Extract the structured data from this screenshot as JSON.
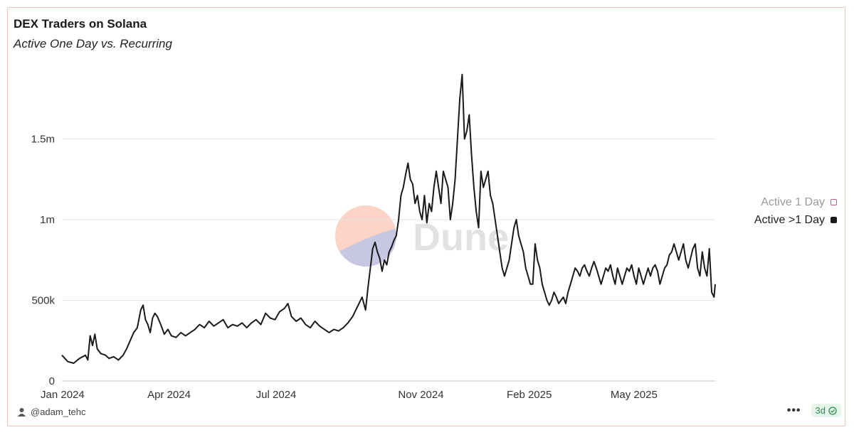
{
  "header": {
    "title": "DEX Traders on Solana",
    "subtitle": "Active One Day vs. Recurring"
  },
  "watermark": "Dune",
  "legend": {
    "items": [
      {
        "label": "Active 1 Day",
        "color": "#b06090",
        "active": false
      },
      {
        "label": "Active >1 Day",
        "color": "#1a1a1a",
        "active": true
      }
    ]
  },
  "footer": {
    "author": "@adam_tehc",
    "more_label": "•••",
    "refresh_badge": "3d"
  },
  "chart_data": {
    "type": "line",
    "title": "DEX Traders on Solana",
    "subtitle": "Active One Day vs. Recurring",
    "xlabel": "",
    "ylabel": "",
    "ylim": [
      0,
      2000000
    ],
    "y_ticks": [
      {
        "value": 0,
        "label": "0"
      },
      {
        "value": 500000,
        "label": "500k"
      },
      {
        "value": 1000000,
        "label": "1m"
      },
      {
        "value": 1500000,
        "label": "1.5m"
      }
    ],
    "x_range": [
      0,
      555
    ],
    "x_ticks": [
      {
        "value": 0,
        "label": "Jan 2024"
      },
      {
        "value": 91,
        "label": "Apr 2024"
      },
      {
        "value": 182,
        "label": "Jul 2024"
      },
      {
        "value": 305,
        "label": "Nov 2024"
      },
      {
        "value": 397,
        "label": "Feb 2025"
      },
      {
        "value": 486,
        "label": "May 2025"
      }
    ],
    "grid": true,
    "legend_position": "right",
    "series": [
      {
        "name": "Active >1 Day",
        "color": "#1a1a1a",
        "points": [
          [
            0,
            160000
          ],
          [
            5,
            120000
          ],
          [
            10,
            110000
          ],
          [
            15,
            140000
          ],
          [
            20,
            160000
          ],
          [
            22,
            130000
          ],
          [
            24,
            280000
          ],
          [
            26,
            220000
          ],
          [
            28,
            290000
          ],
          [
            30,
            200000
          ],
          [
            33,
            170000
          ],
          [
            37,
            160000
          ],
          [
            40,
            140000
          ],
          [
            44,
            150000
          ],
          [
            48,
            130000
          ],
          [
            52,
            160000
          ],
          [
            55,
            200000
          ],
          [
            58,
            250000
          ],
          [
            61,
            300000
          ],
          [
            64,
            330000
          ],
          [
            67,
            440000
          ],
          [
            69,
            470000
          ],
          [
            71,
            380000
          ],
          [
            73,
            350000
          ],
          [
            75,
            300000
          ],
          [
            77,
            390000
          ],
          [
            79,
            420000
          ],
          [
            81,
            400000
          ],
          [
            84,
            350000
          ],
          [
            87,
            290000
          ],
          [
            90,
            320000
          ],
          [
            93,
            280000
          ],
          [
            97,
            270000
          ],
          [
            101,
            300000
          ],
          [
            105,
            280000
          ],
          [
            109,
            300000
          ],
          [
            113,
            320000
          ],
          [
            117,
            350000
          ],
          [
            121,
            330000
          ],
          [
            125,
            370000
          ],
          [
            129,
            340000
          ],
          [
            133,
            360000
          ],
          [
            137,
            380000
          ],
          [
            141,
            330000
          ],
          [
            145,
            350000
          ],
          [
            149,
            340000
          ],
          [
            153,
            360000
          ],
          [
            157,
            330000
          ],
          [
            161,
            360000
          ],
          [
            165,
            380000
          ],
          [
            169,
            350000
          ],
          [
            173,
            420000
          ],
          [
            177,
            390000
          ],
          [
            181,
            380000
          ],
          [
            185,
            430000
          ],
          [
            189,
            450000
          ],
          [
            192,
            480000
          ],
          [
            195,
            400000
          ],
          [
            199,
            370000
          ],
          [
            203,
            390000
          ],
          [
            207,
            350000
          ],
          [
            211,
            330000
          ],
          [
            215,
            370000
          ],
          [
            219,
            340000
          ],
          [
            223,
            320000
          ],
          [
            227,
            300000
          ],
          [
            231,
            320000
          ],
          [
            235,
            310000
          ],
          [
            239,
            330000
          ],
          [
            243,
            360000
          ],
          [
            247,
            400000
          ],
          [
            251,
            460000
          ],
          [
            255,
            520000
          ],
          [
            258,
            440000
          ],
          [
            260,
            580000
          ],
          [
            262,
            700000
          ],
          [
            264,
            820000
          ],
          [
            266,
            860000
          ],
          [
            268,
            800000
          ],
          [
            270,
            760000
          ],
          [
            272,
            680000
          ],
          [
            274,
            750000
          ],
          [
            276,
            720000
          ],
          [
            278,
            800000
          ],
          [
            280,
            830000
          ],
          [
            282,
            870000
          ],
          [
            284,
            900000
          ],
          [
            286,
            1000000
          ],
          [
            288,
            1150000
          ],
          [
            290,
            1200000
          ],
          [
            292,
            1280000
          ],
          [
            294,
            1350000
          ],
          [
            296,
            1250000
          ],
          [
            298,
            1220000
          ],
          [
            300,
            1100000
          ],
          [
            302,
            1150000
          ],
          [
            304,
            1050000
          ],
          [
            306,
            1000000
          ],
          [
            308,
            1150000
          ],
          [
            310,
            980000
          ],
          [
            312,
            1100000
          ],
          [
            314,
            1050000
          ],
          [
            316,
            1200000
          ],
          [
            318,
            1300000
          ],
          [
            320,
            1200000
          ],
          [
            322,
            1100000
          ],
          [
            324,
            1300000
          ],
          [
            326,
            1250000
          ],
          [
            328,
            1200000
          ],
          [
            330,
            1000000
          ],
          [
            332,
            1100000
          ],
          [
            334,
            1250000
          ],
          [
            336,
            1500000
          ],
          [
            338,
            1750000
          ],
          [
            340,
            1900000
          ],
          [
            342,
            1500000
          ],
          [
            344,
            1550000
          ],
          [
            346,
            1650000
          ],
          [
            348,
            1400000
          ],
          [
            350,
            1200000
          ],
          [
            352,
            1050000
          ],
          [
            354,
            950000
          ],
          [
            356,
            1300000
          ],
          [
            358,
            1200000
          ],
          [
            360,
            1250000
          ],
          [
            362,
            1300000
          ],
          [
            364,
            1150000
          ],
          [
            366,
            1100000
          ],
          [
            368,
            1000000
          ],
          [
            370,
            900000
          ],
          [
            372,
            800000
          ],
          [
            374,
            700000
          ],
          [
            376,
            650000
          ],
          [
            378,
            700000
          ],
          [
            380,
            750000
          ],
          [
            382,
            850000
          ],
          [
            384,
            950000
          ],
          [
            386,
            1000000
          ],
          [
            388,
            900000
          ],
          [
            390,
            850000
          ],
          [
            392,
            800000
          ],
          [
            394,
            700000
          ],
          [
            396,
            650000
          ],
          [
            398,
            600000
          ],
          [
            400,
            600000
          ],
          [
            402,
            850000
          ],
          [
            404,
            750000
          ],
          [
            406,
            700000
          ],
          [
            408,
            600000
          ],
          [
            410,
            550000
          ],
          [
            412,
            500000
          ],
          [
            414,
            470000
          ],
          [
            416,
            500000
          ],
          [
            418,
            550000
          ],
          [
            420,
            520000
          ],
          [
            422,
            480000
          ],
          [
            424,
            500000
          ],
          [
            426,
            520000
          ],
          [
            428,
            480000
          ],
          [
            430,
            550000
          ],
          [
            432,
            600000
          ],
          [
            434,
            650000
          ],
          [
            436,
            700000
          ],
          [
            438,
            680000
          ],
          [
            440,
            650000
          ],
          [
            442,
            700000
          ],
          [
            444,
            720000
          ],
          [
            446,
            680000
          ],
          [
            448,
            650000
          ],
          [
            450,
            700000
          ],
          [
            452,
            740000
          ],
          [
            454,
            700000
          ],
          [
            456,
            650000
          ],
          [
            458,
            600000
          ],
          [
            460,
            650000
          ],
          [
            462,
            700000
          ],
          [
            464,
            680000
          ],
          [
            466,
            720000
          ],
          [
            468,
            650000
          ],
          [
            470,
            600000
          ],
          [
            472,
            700000
          ],
          [
            474,
            650000
          ],
          [
            476,
            600000
          ],
          [
            478,
            650000
          ],
          [
            480,
            700000
          ],
          [
            482,
            680000
          ],
          [
            484,
            720000
          ],
          [
            486,
            650000
          ],
          [
            488,
            600000
          ],
          [
            490,
            700000
          ],
          [
            492,
            650000
          ],
          [
            494,
            600000
          ],
          [
            496,
            650000
          ],
          [
            498,
            700000
          ],
          [
            500,
            650000
          ],
          [
            502,
            700000
          ],
          [
            504,
            720000
          ],
          [
            506,
            680000
          ],
          [
            508,
            600000
          ],
          [
            510,
            650000
          ],
          [
            512,
            700000
          ],
          [
            514,
            720000
          ],
          [
            516,
            780000
          ],
          [
            518,
            800000
          ],
          [
            520,
            850000
          ],
          [
            522,
            800000
          ],
          [
            524,
            750000
          ],
          [
            526,
            800000
          ],
          [
            528,
            850000
          ],
          [
            530,
            750000
          ],
          [
            532,
            700000
          ],
          [
            534,
            760000
          ],
          [
            536,
            820000
          ],
          [
            538,
            850000
          ],
          [
            540,
            700000
          ],
          [
            542,
            650000
          ],
          [
            544,
            800000
          ],
          [
            546,
            700000
          ],
          [
            548,
            650000
          ],
          [
            550,
            820000
          ],
          [
            552,
            550000
          ],
          [
            554,
            520000
          ],
          [
            555,
            600000
          ]
        ]
      }
    ]
  }
}
